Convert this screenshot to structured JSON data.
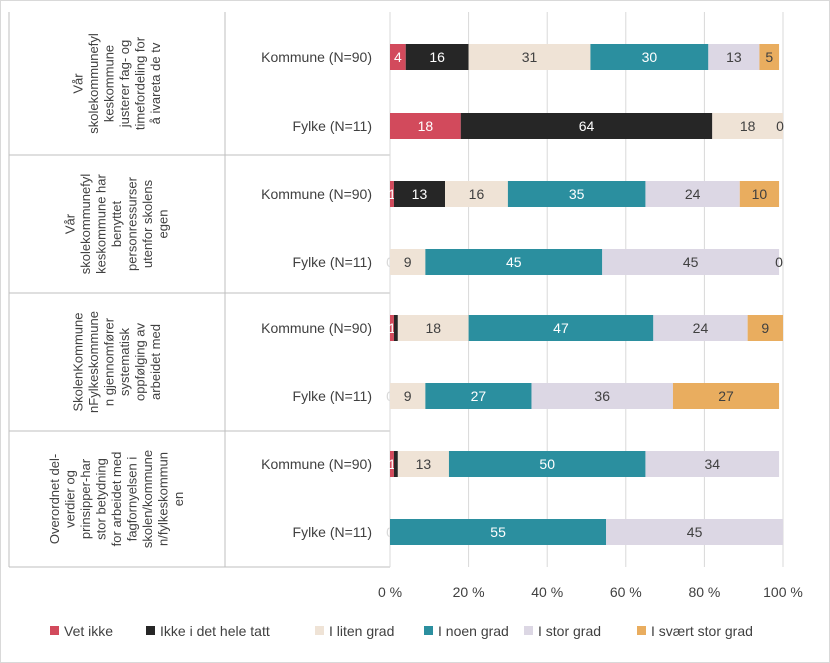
{
  "chart_data": {
    "type": "bar",
    "orientation": "horizontal",
    "stacked": "percent",
    "xlim": [
      0,
      100
    ],
    "xticks": [
      "0 %",
      "20 %",
      "40 %",
      "60 %",
      "80 %",
      "100 %"
    ],
    "grid": true,
    "legend_position": "bottom",
    "legend": [
      "Vet ikke",
      "Ikke i det hele tatt",
      "I liten grad",
      "I noen grad",
      "I stor grad",
      "I svært stor grad"
    ],
    "colors": [
      "#d24a5c",
      "#262626",
      "#efe3d6",
      "#2b8f9f",
      "#dcd7e4",
      "#e9ad5f"
    ],
    "label_colors": [
      "#ffffff",
      "#ffffff",
      "#404040",
      "#ffffff",
      "#404040",
      "#404040"
    ],
    "groups": [
      {
        "label_lines": [
          "Vår",
          "skolekommunefyl",
          "keskommune",
          "justerer fag- og",
          "timefordeling for",
          "å ivareta de tv"
        ],
        "rows": [
          {
            "label": "Kommune (N=90)",
            "values": [
              4,
              16,
              31,
              30,
              13,
              5
            ],
            "labels": [
              "4",
              "16",
              "31",
              "30",
              "13",
              "5"
            ]
          },
          {
            "label": "Fylke (N=11)",
            "values": [
              18,
              64,
              18,
              0,
              0,
              0
            ],
            "labels": [
              "18",
              "64",
              "18",
              "0",
              "",
              ""
            ]
          }
        ]
      },
      {
        "label_lines": [
          "Vår",
          "skolekommunefyl",
          "keskommune har",
          "benyttet",
          "personressurser",
          "utenfor skolens",
          "egen"
        ],
        "rows": [
          {
            "label": "Kommune (N=90)",
            "values": [
              1,
              13,
              16,
              35,
              24,
              10
            ],
            "labels": [
              "1",
              "13",
              "16",
              "35",
              "24",
              "10"
            ]
          },
          {
            "label": "Fylke (N=11)",
            "values": [
              0,
              0,
              9,
              45,
              45,
              0
            ],
            "labels": [
              "0",
              "",
              "9",
              "45",
              "45",
              "0"
            ]
          }
        ]
      },
      {
        "label_lines": [
          "SkolenKommune",
          "nFylkeskommune",
          "n gjennomfører",
          "systematisk",
          "oppfølging av",
          "arbeidet med"
        ],
        "rows": [
          {
            "label": "Kommune (N=90)",
            "values": [
              1,
              1,
              18,
              47,
              24,
              9
            ],
            "labels": [
              "1",
              "",
              "18",
              "47",
              "24",
              "9"
            ]
          },
          {
            "label": "Fylke (N=11)",
            "values": [
              0,
              0,
              9,
              27,
              36,
              27
            ],
            "labels": [
              "0",
              "",
              "9",
              "27",
              "36",
              "27"
            ]
          }
        ]
      },
      {
        "label_lines": [
          "Overordnet del-",
          "verdier og",
          "prinsipper-har",
          "stor betydning",
          "for arbeidet med",
          "fagfornyelsen i",
          "skolen/kommune",
          "n/fylkeskommun",
          "en"
        ],
        "rows": [
          {
            "label": "Kommune (N=90)",
            "values": [
              1,
              1,
              13,
              50,
              34,
              0
            ],
            "labels": [
              "1",
              "",
              "13",
              "50",
              "34",
              ""
            ]
          },
          {
            "label": "Fylke (N=11)",
            "values": [
              0,
              0,
              0,
              55,
              45,
              0
            ],
            "labels": [
              "0",
              "",
              "",
              "55",
              "45",
              ""
            ]
          }
        ]
      }
    ]
  }
}
